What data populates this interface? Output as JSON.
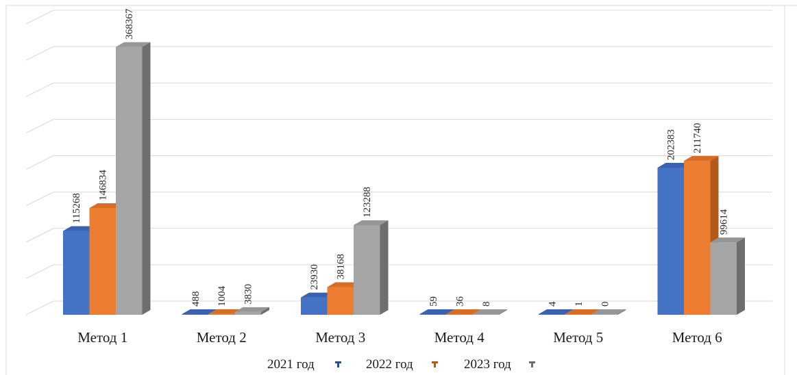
{
  "chart_data": {
    "type": "bar",
    "categories": [
      "Метод 1",
      "Метод 2",
      "Метод 3",
      "Метод 4",
      "Метод 5",
      "Метод 6"
    ],
    "series": [
      {
        "name": "2021 год",
        "values": [
          115268,
          488,
          23930,
          59,
          4,
          202383
        ]
      },
      {
        "name": "2022 год",
        "values": [
          146834,
          1004,
          38168,
          36,
          1,
          211740
        ]
      },
      {
        "name": "2023 год",
        "values": [
          368367,
          3830,
          123288,
          8,
          0,
          99614
        ]
      }
    ],
    "ylim": [
      0,
      400000
    ],
    "grid": true,
    "legend_position": "bottom",
    "style": "3d-clustered-column"
  },
  "colors": {
    "series": [
      "#4472c4",
      "#ed7d31",
      "#a5a5a5"
    ],
    "series_top": [
      "#3b62b0",
      "#d96d24",
      "#969696"
    ],
    "series_side": [
      "#2c4d8c",
      "#b25a1c",
      "#6e6e6e"
    ],
    "grid": "#d9d9d9",
    "border": "#d9d9d9"
  }
}
